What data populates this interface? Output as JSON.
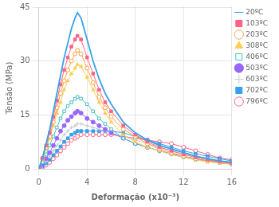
{
  "chart_data": {
    "type": "line",
    "xlabel": "Deformação (x10⁻³)",
    "ylabel": "Tensão (MPa)",
    "xlim": [
      0,
      16
    ],
    "ylim": [
      0,
      45
    ],
    "xticks": [
      0,
      4,
      8,
      12,
      16
    ],
    "yticks": [
      0,
      15,
      30,
      45
    ],
    "grid": true,
    "legend": "upper right",
    "x": [
      0,
      0.3,
      0.6,
      0.9,
      1.2,
      1.5,
      1.8,
      2.1,
      2.4,
      2.7,
      3.0,
      3.2,
      3.5,
      4.0,
      4.5,
      5.0,
      5.5,
      6.0,
      7.0,
      8.0,
      9.0,
      10.0,
      11.0,
      12.0,
      13.0,
      14.0,
      15.0,
      16.0
    ],
    "series": [
      {
        "name": "20ºC",
        "marker": "none",
        "line_style": "solid",
        "values": [
          0,
          3,
          7,
          11,
          16,
          21,
          26,
          31,
          35,
          39,
          42,
          43.5,
          42,
          36,
          30,
          25,
          21,
          18,
          13,
          10,
          8,
          6.5,
          5.5,
          4.5,
          3.5,
          2.8,
          2.2,
          1.8
        ]
      },
      {
        "name": "103ºC",
        "marker": "square",
        "line_style": "solid",
        "values": [
          0,
          3,
          6.5,
          10,
          14.5,
          19,
          23.5,
          27.5,
          31,
          34,
          36,
          37,
          36,
          31,
          26.5,
          22,
          18.5,
          16,
          12,
          9.5,
          7.5,
          6,
          5,
          4,
          3.2,
          2.5,
          2,
          1.5
        ]
      },
      {
        "name": "203ºC",
        "marker": "circle-open",
        "line_style": "solid",
        "values": [
          0,
          2.8,
          6,
          9,
          13,
          17,
          21,
          24.5,
          27.5,
          30,
          32,
          33,
          32,
          28,
          24,
          20,
          17,
          14.5,
          11,
          9,
          7,
          5.5,
          4.5,
          3.5,
          2.8,
          2.2,
          1.8,
          1.4
        ]
      },
      {
        "name": "308ºC",
        "marker": "triangle",
        "line_style": "solid",
        "values": [
          0,
          2.5,
          5.5,
          8.5,
          12,
          15.5,
          18.5,
          22,
          24.5,
          26.5,
          28,
          29,
          28.5,
          25.5,
          22,
          18.5,
          15.5,
          13,
          9.5,
          7.5,
          6,
          5,
          4,
          3.2,
          2.5,
          2,
          1.6,
          1.3
        ]
      },
      {
        "name": "406ºC",
        "marker": "square-open",
        "line_style": "solid",
        "values": [
          0,
          1.8,
          4,
          6.5,
          9,
          11.5,
          14,
          16,
          17.5,
          18.5,
          19.5,
          20,
          19.5,
          18,
          16,
          14,
          12.5,
          11,
          8.5,
          7,
          6,
          5,
          4,
          3.2,
          2.5,
          2,
          1.6,
          1.3
        ]
      },
      {
        "name": "503ºC",
        "marker": "circle",
        "line_style": "solid",
        "values": [
          0,
          1.2,
          2.8,
          4.5,
          6.5,
          8.5,
          10.5,
          12,
          13.5,
          14.5,
          15.5,
          16,
          15.5,
          14,
          13,
          12,
          11,
          10,
          8.5,
          7,
          6,
          5,
          4.2,
          3.5,
          2.8,
          2.2,
          1.8,
          1.5
        ]
      },
      {
        "name": "603ºC",
        "marker": "plus",
        "line_style": "solid",
        "values": [
          0,
          0.8,
          2,
          3.5,
          5,
          6.5,
          8,
          9.5,
          10.5,
          11.5,
          12,
          12.5,
          12.5,
          12,
          11.5,
          11,
          10.5,
          10,
          9,
          8,
          7,
          6,
          5,
          4.2,
          3.5,
          2.8,
          2.2,
          1.8
        ]
      },
      {
        "name": "702ºC",
        "marker": "square",
        "line_style": "solid",
        "values": [
          0,
          0.6,
          1.5,
          2.5,
          3.8,
          5,
          6.2,
          7.5,
          8.5,
          9.5,
          10,
          10.5,
          10.5,
          10.5,
          10.5,
          10.5,
          10.5,
          10.5,
          10,
          9,
          8,
          7,
          6,
          5,
          4.2,
          3.5,
          2.8,
          2.2
        ]
      },
      {
        "name": "796ºC",
        "marker": "circle-open",
        "line_style": "solid",
        "values": [
          0,
          0.4,
          1.0,
          1.8,
          2.8,
          3.8,
          5.0,
          6.0,
          7.0,
          8.0,
          8.5,
          9.0,
          9.5,
          9.5,
          9.5,
          9.5,
          9.5,
          9.5,
          9,
          8.5,
          8,
          7.5,
          7,
          6,
          5,
          4,
          3,
          2.5
        ]
      }
    ]
  }
}
